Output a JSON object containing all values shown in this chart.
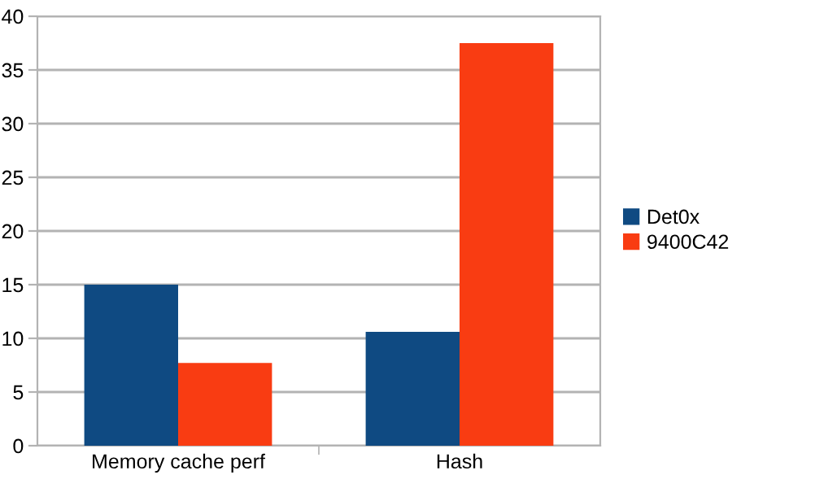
{
  "chart_data": {
    "type": "bar",
    "categories": [
      "Memory cache perf",
      "Hash"
    ],
    "series": [
      {
        "name": "Det0x",
        "color": "#0f4a82",
        "values": [
          15,
          10.6
        ]
      },
      {
        "name": "9400C42",
        "color": "#f93c12",
        "values": [
          7.7,
          37.5
        ]
      }
    ],
    "ylim": [
      0,
      40
    ],
    "yticks": [
      0,
      5,
      10,
      15,
      20,
      25,
      30,
      35,
      40
    ],
    "grid": "y",
    "legend": "right"
  }
}
